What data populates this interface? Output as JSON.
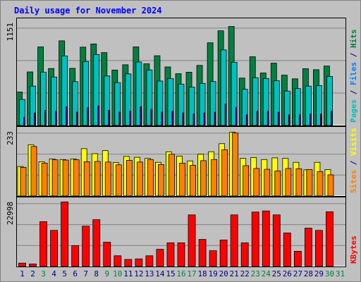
{
  "chart_data": {
    "type": "bar",
    "title": "Daily usage for November 2024",
    "categories": [
      "1",
      "2",
      "3",
      "4",
      "5",
      "6",
      "7",
      "8",
      "9",
      "10",
      "11",
      "12",
      "13",
      "14",
      "15",
      "16",
      "17",
      "18",
      "19",
      "20",
      "21",
      "22",
      "23",
      "24",
      "25",
      "26",
      "27",
      "28",
      "29",
      "30",
      "31"
    ],
    "weekend_days": [
      "3",
      "9",
      "10",
      "16",
      "17",
      "23",
      "24",
      "30",
      "31"
    ],
    "panels": [
      {
        "name": "hits-files-pages",
        "ymax_label": "1151",
        "ymax": 1151,
        "right_labels": [
          {
            "text": "Pages",
            "color": "#00c0c0"
          },
          {
            "text": " / ",
            "color": "#000080"
          },
          {
            "text": "Files",
            "color": "#0080ff"
          },
          {
            "text": " / ",
            "color": "#000080"
          },
          {
            "text": "Hits",
            "color": "#008040"
          }
        ],
        "series": [
          {
            "name": "Hits",
            "color": "#008040",
            "values": [
              374,
              599,
              879,
              637,
              947,
              639,
              876,
              912,
              815,
              620,
              679,
              879,
              690,
              780,
              655,
              579,
              596,
              672,
              925,
              1059,
              1107,
              530,
              769,
              587,
              697,
              563,
              522,
              635,
              624,
              665,
              null
            ]
          },
          {
            "name": "Files",
            "color": "#00c0c0",
            "values": [
              291,
              441,
              597,
              542,
              778,
              490,
              715,
              794,
              554,
              480,
              577,
              710,
              621,
              497,
              524,
              463,
              429,
              471,
              492,
              845,
              706,
              405,
              534,
              526,
              500,
              385,
              413,
              440,
              447,
              549,
              null
            ]
          },
          {
            "name": "Pages",
            "color": "#0000a0",
            "values": [
              90,
              140,
              170,
              160,
              210,
              150,
              200,
              220,
              170,
              150,
              160,
              210,
              180,
              150,
              160,
              140,
              130,
              140,
              150,
              240,
              200,
              120,
              160,
              160,
              150,
              120,
              120,
              130,
              130,
              160,
              null
            ]
          }
        ]
      },
      {
        "name": "visits-sites",
        "ymax_label": "233",
        "ymax": 233,
        "right_labels": [
          {
            "text": "Sites",
            "color": "#ff8000"
          },
          {
            "text": " / ",
            "color": "#000080"
          },
          {
            "text": "Visits",
            "color": "#ffff00"
          }
        ],
        "series": [
          {
            "name": "Visits",
            "color": "#ffff00",
            "values": [
              106,
              184,
              123,
              133,
              131,
              133,
              170,
              152,
              163,
              120,
              142,
              139,
              135,
              121,
              159,
              143,
              126,
              150,
              159,
              188,
              229,
              135,
              138,
              131,
              137,
              135,
              121,
              94,
              121,
              95,
              null
            ]
          },
          {
            "name": "Sites",
            "color": "#ff8000",
            "values": [
              103,
              178,
              118,
              130,
              129,
              130,
              123,
              124,
              122,
              112,
              128,
              122,
              131,
              113,
              150,
              118,
              110,
              127,
              131,
              166,
              226,
              109,
              99,
              96,
              90,
              99,
              98,
              95,
              88,
              76,
              null
            ]
          }
        ]
      },
      {
        "name": "kbytes",
        "ymax_label": "22998",
        "ymax": 22998,
        "right_labels": [
          {
            "text": "KBytes",
            "color": "#ff0000"
          }
        ],
        "series": [
          {
            "name": "KBytes",
            "color": "#ff0000",
            "values": [
              1200,
              900,
              15900,
              12800,
              22900,
              7400,
              14300,
              16600,
              8600,
              3800,
              2500,
              2700,
              3800,
              6100,
              8400,
              8400,
              18300,
              9600,
              5600,
              9400,
              18300,
              8400,
              19300,
              19700,
              18300,
              11900,
              5400,
              13600,
              12800,
              19400,
              null
            ]
          }
        ]
      }
    ]
  }
}
